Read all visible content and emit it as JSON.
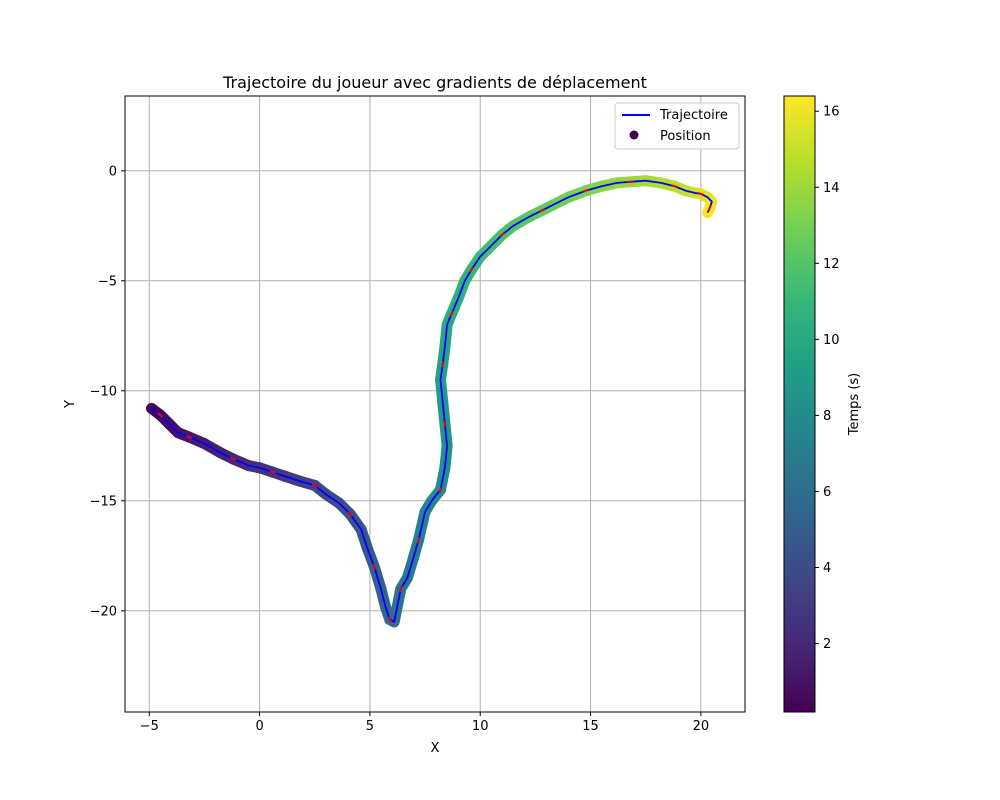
{
  "chart_data": {
    "type": "scatter",
    "title": "Trajectoire du joueur avec gradients de déplacement",
    "xlabel": "X",
    "ylabel": "Y",
    "xlim": [
      -6.1,
      22.0
    ],
    "ylim": [
      -24.6,
      3.4
    ],
    "xticks": [
      -5,
      0,
      5,
      10,
      15,
      20
    ],
    "yticks": [
      0,
      -5,
      -10,
      -15,
      -20
    ],
    "xtick_labels": [
      "−5",
      "0",
      "5",
      "10",
      "15",
      "20"
    ],
    "ytick_labels": [
      "0",
      "−5",
      "−10",
      "−15",
      "−20"
    ],
    "grid": true,
    "legend_position": "top-right",
    "legend": [
      {
        "label": "Trajectoire",
        "kind": "line",
        "color": "#0000ff"
      },
      {
        "label": "Position",
        "kind": "marker",
        "color": "#440154"
      }
    ],
    "colorbar": {
      "label": "Temps (s)",
      "min": 0.2,
      "max": 16.4,
      "ticks": [
        2,
        4,
        6,
        8,
        10,
        12,
        14,
        16
      ],
      "tick_labels": [
        "2",
        "4",
        "6",
        "8",
        "10",
        "12",
        "14",
        "16"
      ],
      "colormap": "viridis"
    },
    "series": [
      {
        "name": "Trajectoire",
        "color": "#0000ff",
        "x": [
          -4.9,
          -4.5,
          -4.1,
          -3.7,
          -3.2,
          -2.5,
          -1.8,
          -1.2,
          -0.5,
          0.0,
          0.6,
          1.2,
          1.8,
          2.5,
          3.0,
          3.6,
          4.1,
          4.6,
          4.9,
          5.2,
          5.5,
          5.7,
          5.9,
          6.1,
          6.2,
          6.4,
          6.7,
          7.0,
          7.2,
          7.5,
          7.8,
          8.2,
          8.4,
          8.5,
          8.4,
          8.3,
          8.2,
          8.3,
          8.4,
          8.5,
          8.7,
          9.0,
          9.3,
          9.6,
          10.0,
          10.5,
          11.0,
          11.5,
          12.2,
          12.8,
          13.4,
          14.0,
          14.8,
          15.5,
          16.2,
          16.8,
          17.5,
          18.2,
          18.8,
          19.3,
          19.7,
          20.0,
          20.3,
          20.5,
          20.4,
          20.3
        ],
        "y": [
          -10.8,
          -11.1,
          -11.5,
          -11.9,
          -12.1,
          -12.4,
          -12.8,
          -13.1,
          -13.4,
          -13.5,
          -13.7,
          -13.9,
          -14.1,
          -14.3,
          -14.7,
          -15.1,
          -15.6,
          -16.3,
          -17.2,
          -18.0,
          -19.0,
          -19.8,
          -20.4,
          -20.5,
          -20.0,
          -19.0,
          -18.5,
          -17.5,
          -16.8,
          -15.5,
          -15.0,
          -14.5,
          -13.5,
          -12.5,
          -11.5,
          -10.5,
          -9.5,
          -8.8,
          -8.0,
          -7.0,
          -6.5,
          -5.8,
          -5.0,
          -4.5,
          -3.9,
          -3.4,
          -2.9,
          -2.5,
          -2.1,
          -1.8,
          -1.5,
          -1.2,
          -0.9,
          -0.7,
          -0.55,
          -0.5,
          -0.45,
          -0.55,
          -0.7,
          -0.9,
          -1.0,
          -1.05,
          -1.2,
          -1.4,
          -1.7,
          -1.9
        ]
      },
      {
        "name": "Position",
        "x": [
          -4.9,
          -4.5,
          -4.1,
          -3.7,
          -3.2,
          -2.5,
          -1.8,
          -1.2,
          -0.5,
          0.0,
          0.6,
          1.2,
          1.8,
          2.5,
          3.0,
          3.6,
          4.1,
          4.6,
          4.9,
          5.2,
          5.5,
          5.7,
          5.9,
          6.1,
          6.2,
          6.4,
          6.7,
          7.0,
          7.2,
          7.5,
          7.8,
          8.2,
          8.4,
          8.5,
          8.4,
          8.3,
          8.2,
          8.3,
          8.4,
          8.5,
          8.7,
          9.0,
          9.3,
          9.6,
          10.0,
          10.5,
          11.0,
          11.5,
          12.2,
          12.8,
          13.4,
          14.0,
          14.8,
          15.5,
          16.2,
          16.8,
          17.5,
          18.2,
          18.8,
          19.3,
          19.7,
          20.0,
          20.3,
          20.5,
          20.4,
          20.3
        ],
        "y": [
          -10.8,
          -11.1,
          -11.5,
          -11.9,
          -12.1,
          -12.4,
          -12.8,
          -13.1,
          -13.4,
          -13.5,
          -13.7,
          -13.9,
          -14.1,
          -14.3,
          -14.7,
          -15.1,
          -15.6,
          -16.3,
          -17.2,
          -18.0,
          -19.0,
          -19.8,
          -20.4,
          -20.5,
          -20.0,
          -19.0,
          -18.5,
          -17.5,
          -16.8,
          -15.5,
          -15.0,
          -14.5,
          -13.5,
          -12.5,
          -11.5,
          -10.5,
          -9.5,
          -8.8,
          -8.0,
          -7.0,
          -6.5,
          -5.8,
          -5.0,
          -4.5,
          -3.9,
          -3.4,
          -2.9,
          -2.5,
          -2.1,
          -1.8,
          -1.5,
          -1.2,
          -0.9,
          -0.7,
          -0.55,
          -0.5,
          -0.45,
          -0.55,
          -0.7,
          -0.9,
          -1.0,
          -1.05,
          -1.2,
          -1.4,
          -1.7,
          -1.9
        ],
        "time": [
          0.2,
          0.45,
          0.7,
          0.95,
          1.2,
          1.45,
          1.7,
          1.95,
          2.2,
          2.45,
          2.7,
          2.95,
          3.2,
          3.45,
          3.7,
          3.95,
          4.2,
          4.45,
          4.7,
          4.95,
          5.2,
          5.45,
          5.7,
          5.95,
          6.2,
          6.45,
          6.7,
          6.95,
          7.2,
          7.45,
          7.7,
          7.95,
          8.2,
          8.45,
          8.7,
          8.95,
          9.2,
          9.45,
          9.7,
          9.95,
          10.2,
          10.45,
          10.7,
          10.95,
          11.2,
          11.45,
          11.7,
          11.95,
          12.2,
          12.45,
          12.7,
          12.95,
          13.2,
          13.45,
          13.7,
          13.95,
          14.2,
          14.45,
          14.7,
          14.95,
          15.2,
          15.45,
          15.7,
          15.95,
          16.2,
          16.4
        ]
      }
    ]
  }
}
